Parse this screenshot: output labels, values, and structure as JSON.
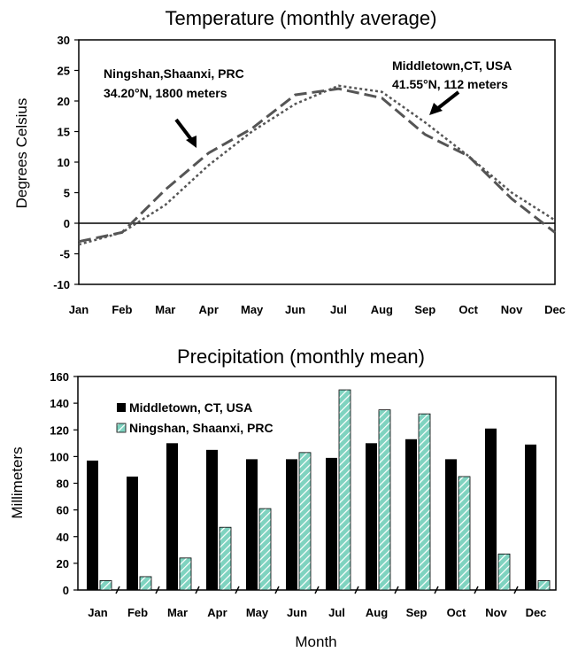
{
  "colors": {
    "middletown": "#000000",
    "ningshan_fill": "#7fd3c0",
    "ningshan_stripe": "#ffffff",
    "ningshan_temp_line": "#555555",
    "middletown_temp_line": "#555555"
  },
  "chart_data": [
    {
      "type": "line",
      "title": "Temperature (monthly average)",
      "xlabel": "",
      "ylabel": "Degrees Celsius",
      "categories": [
        "Jan",
        "Feb",
        "Mar",
        "Apr",
        "May",
        "Jun",
        "Jul",
        "Aug",
        "Sep",
        "Oct",
        "Nov",
        "Dec"
      ],
      "ylim": [
        -10,
        30
      ],
      "yticks": [
        "-10",
        "-5",
        "0",
        "5",
        "10",
        "15",
        "20",
        "25",
        "30"
      ],
      "series": [
        {
          "name": "Ningshan",
          "style": "dashed",
          "values": [
            -3,
            -1.5,
            5.5,
            11.5,
            15.5,
            21,
            22,
            20.5,
            14.5,
            11,
            4,
            -1.5
          ]
        },
        {
          "name": "Middletown",
          "style": "dotted",
          "values": [
            -3.5,
            -1.5,
            3,
            9.5,
            15,
            19.5,
            22.5,
            21.5,
            16.5,
            11,
            5,
            0.5
          ]
        }
      ],
      "annotations": [
        {
          "line1": "Ningshan,Shaanxi, PRC",
          "line2": "34.20°N, 1800 meters"
        },
        {
          "line1": "Middletown,CT, USA",
          "line2": "41.55°N, 112 meters"
        }
      ],
      "grid": false
    },
    {
      "type": "bar",
      "title": "Precipitation (monthly mean)",
      "xlabel": "Month",
      "ylabel": "Millimeters",
      "categories": [
        "Jan",
        "Feb",
        "Mar",
        "Apr",
        "May",
        "Jun",
        "Jul",
        "Aug",
        "Sep",
        "Oct",
        "Nov",
        "Dec"
      ],
      "ylim": [
        0,
        160
      ],
      "yticks": [
        "0",
        "20",
        "40",
        "60",
        "80",
        "100",
        "120",
        "140",
        "160"
      ],
      "series": [
        {
          "name": "Middletown, CT, USA",
          "values": [
            97,
            85,
            110,
            105,
            98,
            98,
            99,
            110,
            113,
            98,
            121,
            109
          ]
        },
        {
          "name": "Ningshan, Shaanxi, PRC",
          "values": [
            7,
            10,
            24,
            47,
            61,
            103,
            150,
            135,
            132,
            85,
            27,
            7
          ]
        }
      ],
      "legend": "top-left",
      "grid": false
    }
  ]
}
